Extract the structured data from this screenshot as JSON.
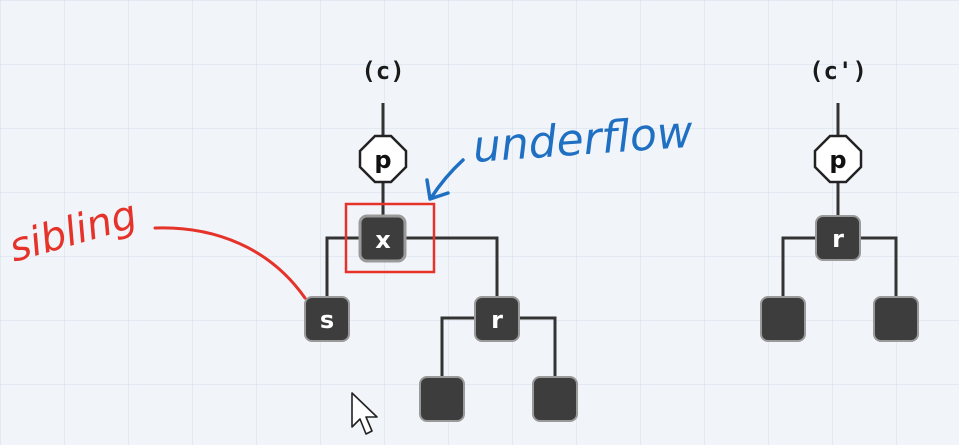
{
  "diagram": {
    "left_tree": {
      "label": "(c)",
      "parent": "p",
      "node": "x",
      "sibling": "s",
      "right": "r"
    },
    "right_tree": {
      "label": "(c')",
      "parent": "p",
      "node": "r"
    },
    "annotations": {
      "sibling": "sibling",
      "underflow": "underflow"
    },
    "colors": {
      "node_fill": "#3d3d3d",
      "edge": "#333333",
      "annotation_red": "#e5332a",
      "annotation_blue": "#1f6fc2"
    }
  }
}
